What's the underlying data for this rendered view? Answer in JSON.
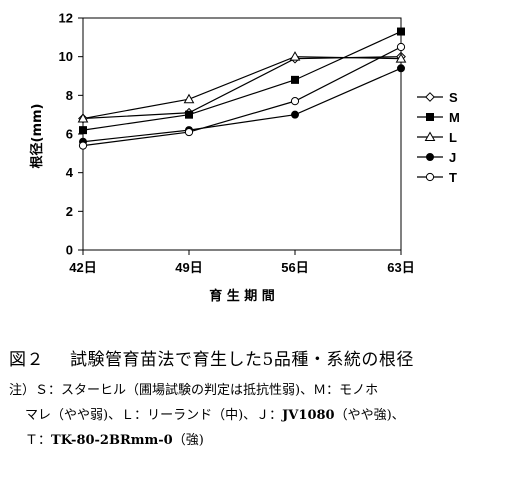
{
  "chart_data": {
    "type": "line",
    "x": [
      "42日",
      "49日",
      "56日",
      "63日"
    ],
    "xlabel": "育 生 期 間",
    "ylabel": "根径(mm)",
    "ylim": [
      0,
      12
    ],
    "yticks": [
      "0",
      "2",
      "4",
      "6",
      "8",
      "10",
      "12"
    ],
    "grid": false,
    "legend": "right",
    "series": [
      {
        "name": "S",
        "marker": "diamond-open",
        "values": [
          6.8,
          7.1,
          9.9,
          10.0
        ]
      },
      {
        "name": "M",
        "marker": "square-filled",
        "values": [
          6.2,
          7.0,
          8.8,
          11.3
        ]
      },
      {
        "name": "L",
        "marker": "triangle-open",
        "values": [
          6.8,
          7.8,
          10.0,
          9.9
        ]
      },
      {
        "name": "J",
        "marker": "circle-filled",
        "values": [
          5.6,
          6.2,
          7.0,
          9.4
        ]
      },
      {
        "name": "T",
        "marker": "circle-open",
        "values": [
          5.4,
          6.1,
          7.7,
          10.5
        ]
      }
    ]
  },
  "caption": {
    "figure_number": "図２",
    "title": "試験管育苗法で育生した5品種・系統の根径",
    "note_line1": "注）Ｓ：スターヒル（圃場試験の判定は抵抗性弱)、Ｍ：モノホ",
    "note_line2": "マレ（やや弱)、Ｌ：リーランド（中)、Ｊ：",
    "note_line2_bold": "JV1080",
    "note_line2_tail": "（やや強)、",
    "note_line3": "Ｔ：",
    "note_line3_bold": "TK-80-2BRmm-0",
    "note_line3_tail": "（強)"
  }
}
